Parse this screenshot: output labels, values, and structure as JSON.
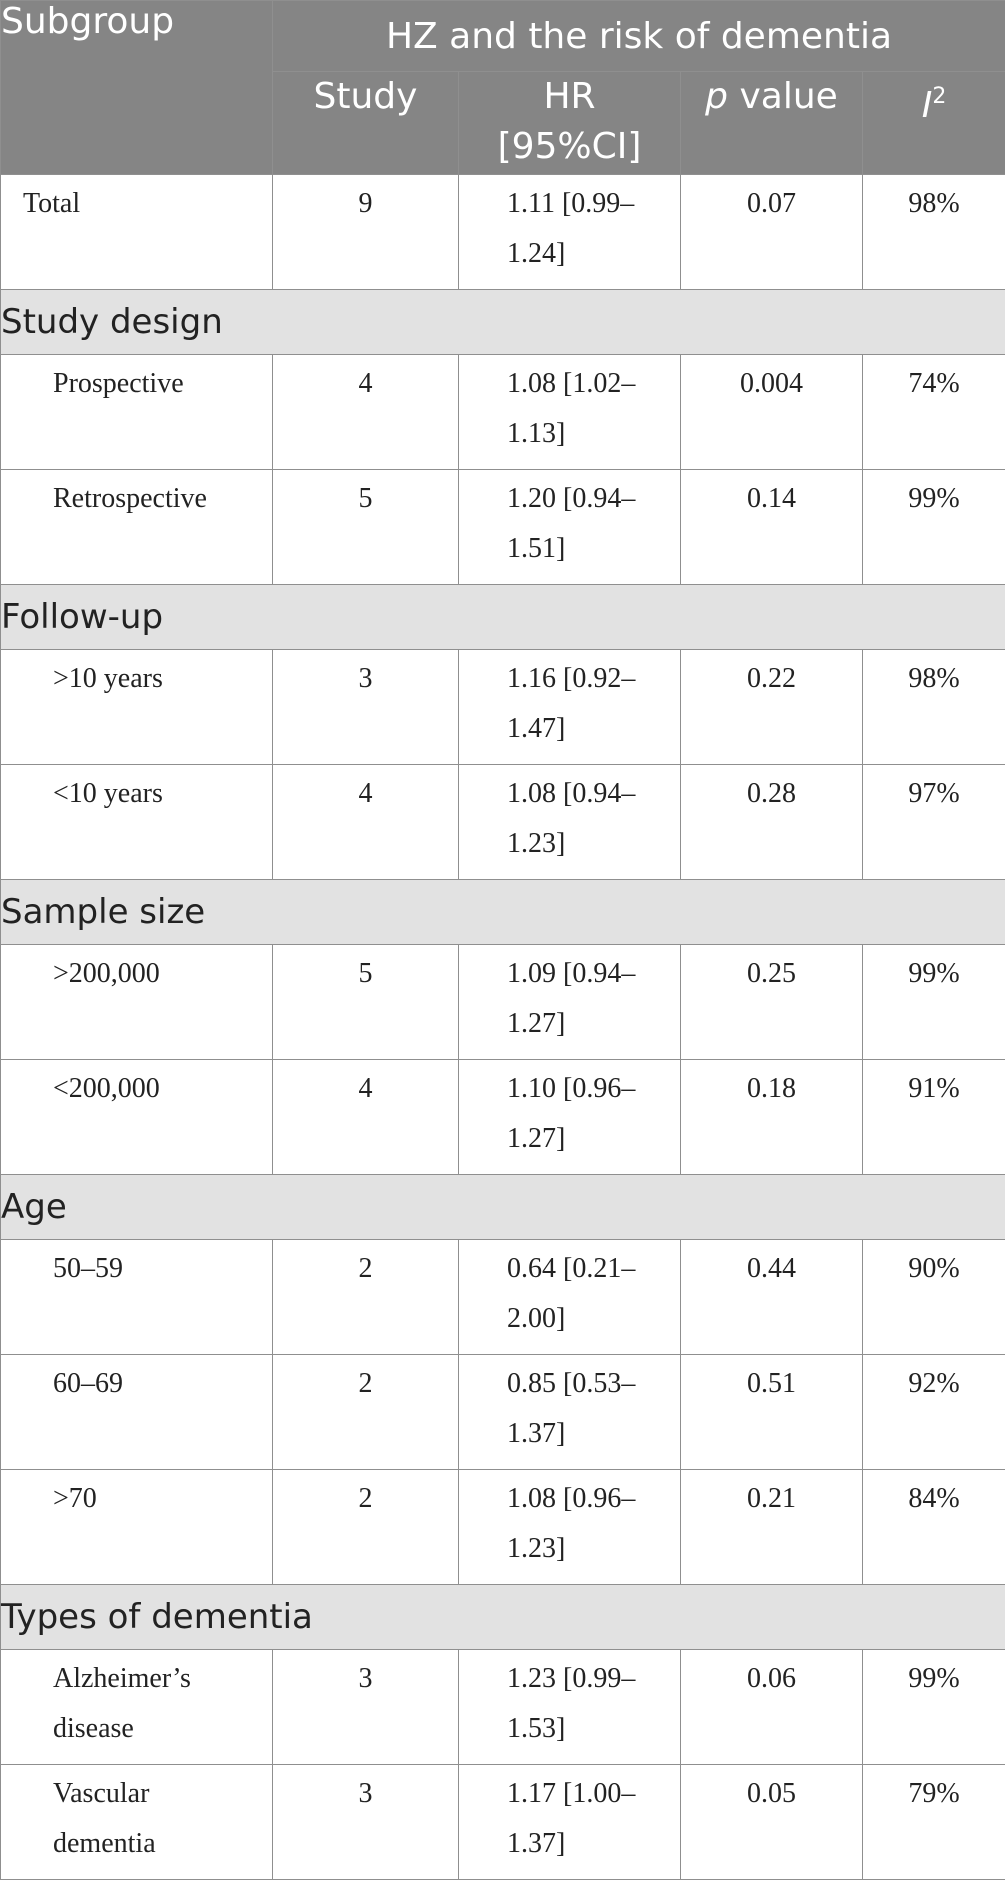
{
  "header": {
    "subgroup": "Subgroup",
    "span_title": "HZ and the risk of dementia",
    "col_study": "Study",
    "col_hr_line1": "HR",
    "col_hr_line2": "[95%CI]",
    "col_p_italic": "p",
    "col_p_rest": " value",
    "col_i2_base": "I",
    "col_i2_sup": "2"
  },
  "total": {
    "label": "Total",
    "study": "9",
    "hr_line1": "1.11 [0.99–",
    "hr_line2": "1.24]",
    "p": "0.07",
    "i2": "98%"
  },
  "sections": [
    {
      "title": "Study design",
      "rows": [
        {
          "label_line1": "Prospective",
          "label_line2": "",
          "study": "4",
          "hr_line1": "1.08 [1.02–",
          "hr_line2": "1.13]",
          "p": "0.004",
          "i2": "74%"
        },
        {
          "label_line1": "Retrospective",
          "label_line2": "",
          "study": "5",
          "hr_line1": "1.20 [0.94–",
          "hr_line2": "1.51]",
          "p": "0.14",
          "i2": "99%"
        }
      ]
    },
    {
      "title": "Follow-up",
      "rows": [
        {
          "label_line1": ">10 years",
          "label_line2": "",
          "study": "3",
          "hr_line1": "1.16 [0.92–",
          "hr_line2": "1.47]",
          "p": "0.22",
          "i2": "98%"
        },
        {
          "label_line1": "<10 years",
          "label_line2": "",
          "study": "4",
          "hr_line1": "1.08 [0.94–",
          "hr_line2": "1.23]",
          "p": "0.28",
          "i2": "97%"
        }
      ]
    },
    {
      "title": "Sample size",
      "rows": [
        {
          "label_line1": ">200,000",
          "label_line2": "",
          "study": "5",
          "hr_line1": "1.09 [0.94–",
          "hr_line2": "1.27]",
          "p": "0.25",
          "i2": "99%"
        },
        {
          "label_line1": "<200,000",
          "label_line2": "",
          "study": "4",
          "hr_line1": "1.10 [0.96–",
          "hr_line2": "1.27]",
          "p": "0.18",
          "i2": "91%"
        }
      ]
    },
    {
      "title": "Age",
      "rows": [
        {
          "label_line1": "50–59",
          "label_line2": "",
          "study": "2",
          "hr_line1": "0.64 [0.21–",
          "hr_line2": "2.00]",
          "p": "0.44",
          "i2": "90%"
        },
        {
          "label_line1": "60–69",
          "label_line2": "",
          "study": "2",
          "hr_line1": "0.85 [0.53–",
          "hr_line2": "1.37]",
          "p": "0.51",
          "i2": "92%"
        },
        {
          "label_line1": ">70",
          "label_line2": "",
          "study": "2",
          "hr_line1": "1.08 [0.96–",
          "hr_line2": "1.23]",
          "p": "0.21",
          "i2": "84%"
        }
      ]
    },
    {
      "title": "Types of dementia",
      "rows": [
        {
          "label_line1": "Alzheimer’s",
          "label_line2": "disease",
          "study": "3",
          "hr_line1": "1.23 [0.99–",
          "hr_line2": "1.53]",
          "p": "0.06",
          "i2": "99%"
        },
        {
          "label_line1": "Vascular",
          "label_line2": "dementia",
          "study": "3",
          "hr_line1": "1.17 [1.00–",
          "hr_line2": "1.37]",
          "p": "0.05",
          "i2": "79%"
        }
      ]
    }
  ]
}
